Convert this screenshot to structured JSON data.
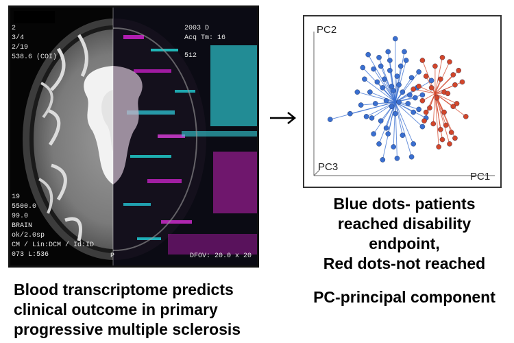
{
  "mri_panel": {
    "overlay_left": [
      "2",
      "3/4",
      "2/19",
      "538.6 (COI)",
      "19",
      "5500.0",
      "99.0",
      "BRAIN",
      "ok/2.0sp",
      "CM / Lin:DCM / Id:ID",
      "073  L:536"
    ],
    "overlay_right": [
      "2003 D",
      "Acq Tm: 16",
      "512"
    ],
    "overlay_bottom": [
      "P",
      "DFOV: 20.0 x 20"
    ]
  },
  "arrow": {
    "glyph": "→"
  },
  "caption_left": [
    "Blood transcriptome predicts",
    "clinical outcome in primary",
    "progressive multiple sclerosis"
  ],
  "legend_lines": [
    "Blue dots- patients",
    "reached disability",
    "endpoint,",
    "Red dots-not reached"
  ],
  "pc_definition": "PC-principal component",
  "colors": {
    "blue_group": "#3a6fd0",
    "red_group": "#d2462a",
    "text": "#000000"
  },
  "chart_data": {
    "type": "scatter",
    "title": "",
    "axes": [
      "PC1",
      "PC2",
      "PC3"
    ],
    "ylabel": "PC2",
    "xlabel": "PC1",
    "zlabel": "PC3",
    "xlim": [
      0,
      100
    ],
    "ylim": [
      0,
      100
    ],
    "grid": false,
    "series": [
      {
        "name": "Blue dots- patients reached disability endpoint",
        "color": "#3a6fd0",
        "centroid": [
          45,
          51
        ],
        "x": [
          45,
          30,
          36,
          41,
          50,
          27,
          33,
          37,
          42,
          48,
          28,
          35,
          39,
          46,
          54,
          24,
          31,
          38,
          44,
          49,
          53,
          57,
          26,
          34,
          40,
          43,
          47,
          52,
          56,
          60,
          29,
          32,
          37,
          45,
          55,
          58,
          62,
          20,
          9,
          33,
          41,
          49,
          36,
          44,
          55,
          38,
          46,
          54,
          42,
          51,
          43,
          58,
          60,
          47,
          40,
          65
        ],
        "y": [
          95,
          84,
          82,
          86,
          86,
          75,
          74,
          76,
          73,
          76,
          67,
          65,
          67,
          69,
          68,
          58,
          58,
          61,
          59,
          58,
          56,
          61,
          49,
          50,
          52,
          48,
          51,
          50,
          54,
          56,
          41,
          40,
          38,
          43,
          44,
          46,
          40,
          43,
          39,
          29,
          29,
          28,
          22,
          20,
          22,
          11,
          12,
          13,
          80,
          80,
          62,
          72,
          34,
          63,
          33,
          66
        ]
      },
      {
        "name": "Red dots-not reached",
        "color": "#d2462a",
        "centroid": [
          67,
          57
        ],
        "x": [
          71,
          60,
          67,
          75,
          80,
          62,
          70,
          77,
          82,
          58,
          65,
          72,
          78,
          60,
          68,
          74,
          79,
          64,
          72,
          77,
          84,
          61,
          66,
          70,
          73,
          76,
          71,
          75,
          78,
          69,
          62,
          55
        ],
        "y": [
          82,
          80,
          76,
          79,
          73,
          69,
          67,
          70,
          65,
          62,
          61,
          58,
          63,
          52,
          54,
          57,
          50,
          47,
          44,
          48,
          41,
          38,
          36,
          32,
          35,
          30,
          25,
          22,
          26,
          20,
          44,
          60
        ]
      }
    ]
  }
}
